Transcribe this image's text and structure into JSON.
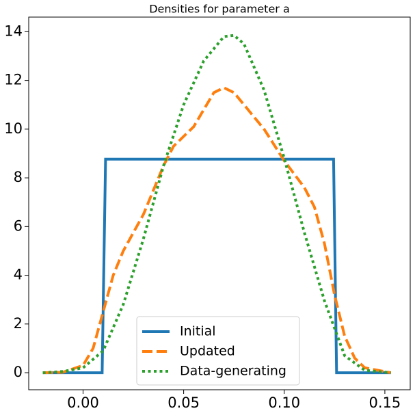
{
  "chart_data": {
    "type": "line",
    "title": "Densities for parameter a",
    "xlim": [
      -0.027,
      0.1626
    ],
    "ylim": [
      -0.7,
      14.6
    ],
    "xticks": [
      {
        "value": 0,
        "label": "0.00"
      },
      0.05,
      {
        "value": 0.1,
        "label": "0.10"
      },
      0.15
    ],
    "yticks": [
      0,
      2,
      4,
      6,
      8,
      10,
      12,
      14
    ],
    "grid": false,
    "legend": "lower center",
    "series": [
      {
        "name": "Initial",
        "color": "#1f77b4",
        "linestyle": "solid",
        "x": [
          -0.02,
          0.0095,
          0.0112,
          0.1245,
          0.126,
          0.153
        ],
        "values": [
          0,
          0,
          8.77,
          8.77,
          0,
          0
        ]
      },
      {
        "name": "Updated",
        "color": "#ff7f0e",
        "linestyle": "dashed",
        "x": [
          -0.02,
          -0.01,
          0,
          0.005,
          0.01,
          0.015,
          0.02,
          0.03,
          0.04,
          0.045,
          0.05,
          0.055,
          0.06,
          0.065,
          0.07,
          0.075,
          0.08,
          0.09,
          0.1,
          0.11,
          0.115,
          0.12,
          0.125,
          0.13,
          0.135,
          0.14,
          0.153
        ],
        "values": [
          0,
          0.02,
          0.3,
          1.0,
          2.5,
          4.0,
          5.0,
          6.5,
          8.5,
          9.3,
          9.7,
          10.1,
          10.8,
          11.5,
          11.7,
          11.5,
          11.0,
          10.0,
          8.7,
          7.6,
          6.8,
          5.3,
          3.2,
          1.5,
          0.6,
          0.2,
          0
        ]
      },
      {
        "name": "Data-generating",
        "color": "#2ca02c",
        "linestyle": "dotted",
        "x": [
          -0.02,
          -0.01,
          0,
          0.01,
          0.02,
          0.03,
          0.04,
          0.05,
          0.06,
          0.07,
          0.075,
          0.08,
          0.09,
          0.1,
          0.11,
          0.12,
          0.13,
          0.14,
          0.153
        ],
        "values": [
          0,
          0.05,
          0.2,
          0.9,
          2.8,
          5.5,
          8.5,
          11.0,
          12.8,
          13.8,
          13.85,
          13.5,
          11.6,
          8.8,
          5.75,
          2.95,
          0.7,
          0.1,
          0
        ]
      }
    ]
  }
}
